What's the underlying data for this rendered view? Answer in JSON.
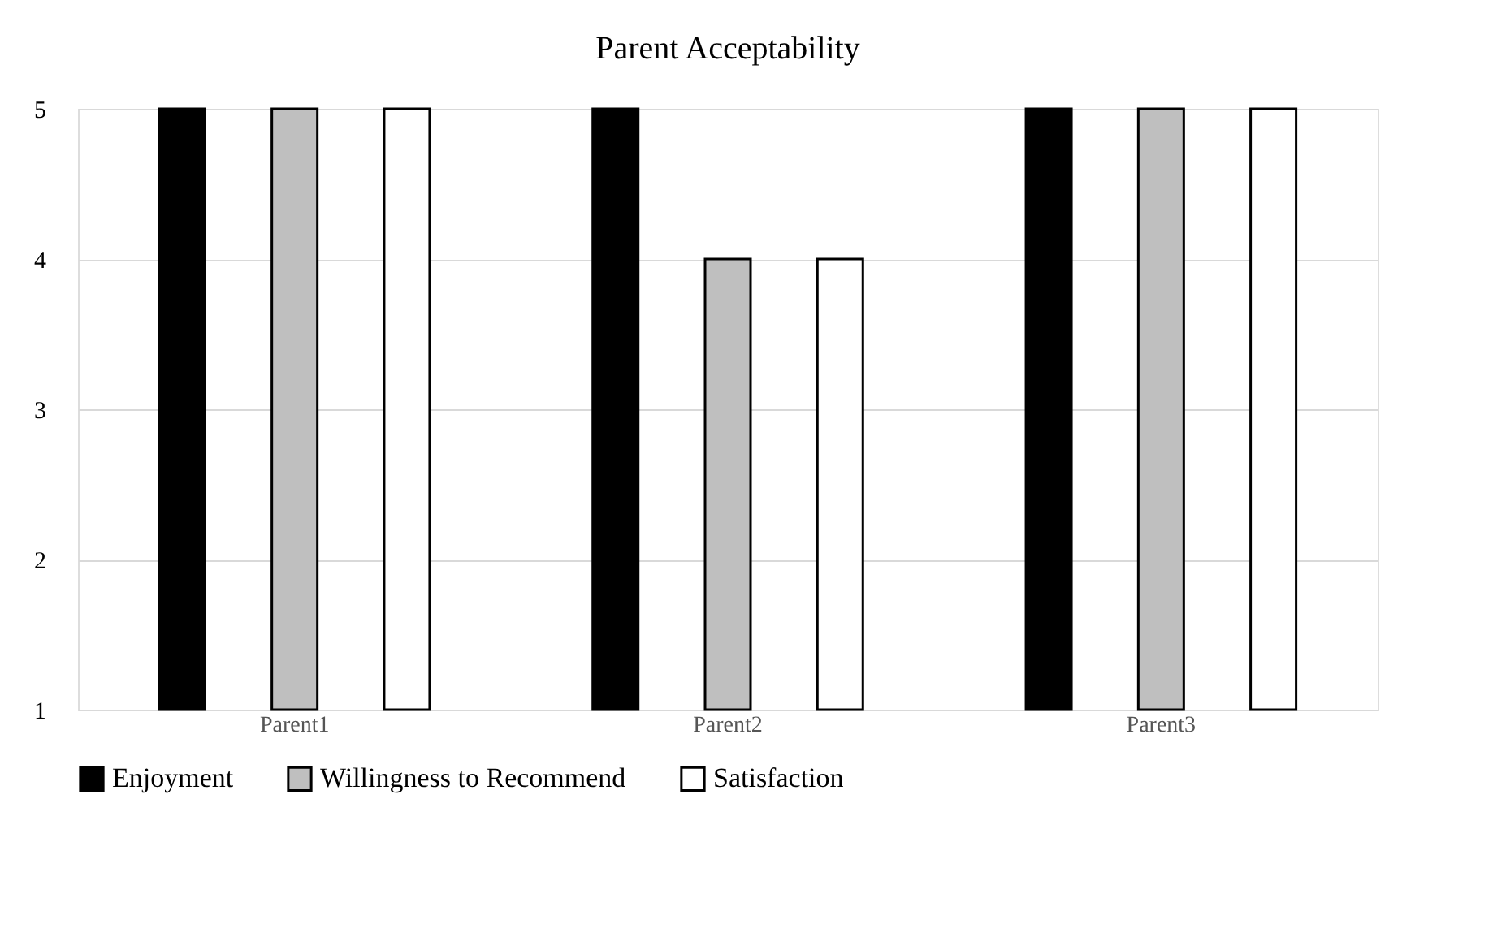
{
  "chart_data": {
    "type": "bar",
    "title": "Parent Acceptability",
    "categories": [
      "Parent1",
      "Parent2",
      "Parent3"
    ],
    "series": [
      {
        "name": "Enjoyment",
        "color": "#000000",
        "values": [
          5,
          5,
          5
        ]
      },
      {
        "name": "Willingness to Recommend",
        "color": "#bfbfbf",
        "values": [
          5,
          4,
          5
        ]
      },
      {
        "name": "Satisfaction",
        "color": "#ffffff",
        "values": [
          5,
          4,
          5
        ]
      }
    ],
    "ylim": [
      1,
      5
    ],
    "yticks": [
      1,
      2,
      3,
      4,
      5
    ],
    "grid": "y",
    "legend": "bottom"
  }
}
